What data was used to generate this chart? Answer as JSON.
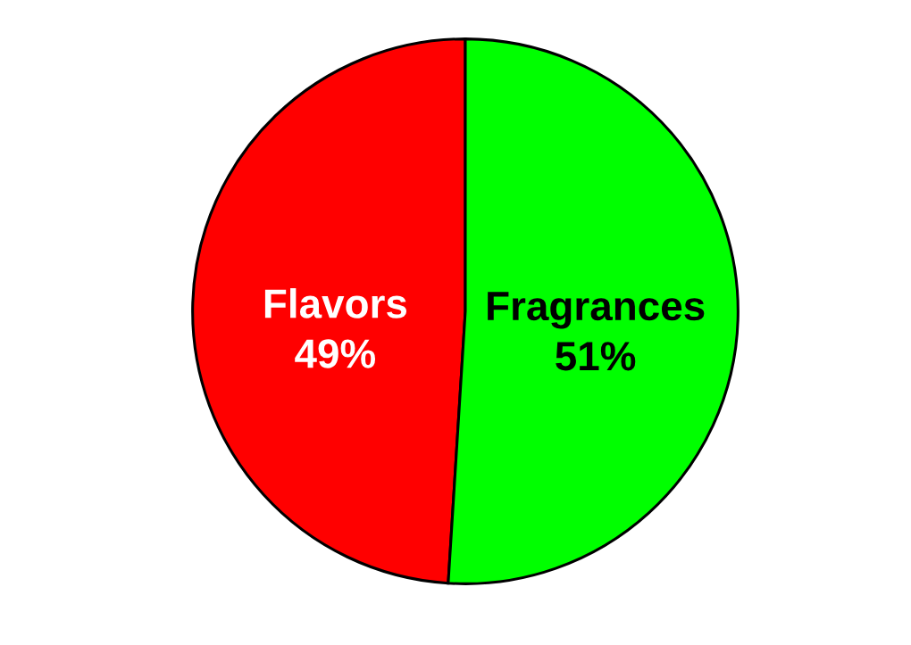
{
  "chart_data": {
    "type": "pie",
    "categories": [
      "Flavors",
      "Fragrances"
    ],
    "values": [
      49,
      51
    ],
    "colors": [
      "#ff0000",
      "#00ff00"
    ],
    "value_labels": [
      "49%",
      "51%"
    ]
  }
}
